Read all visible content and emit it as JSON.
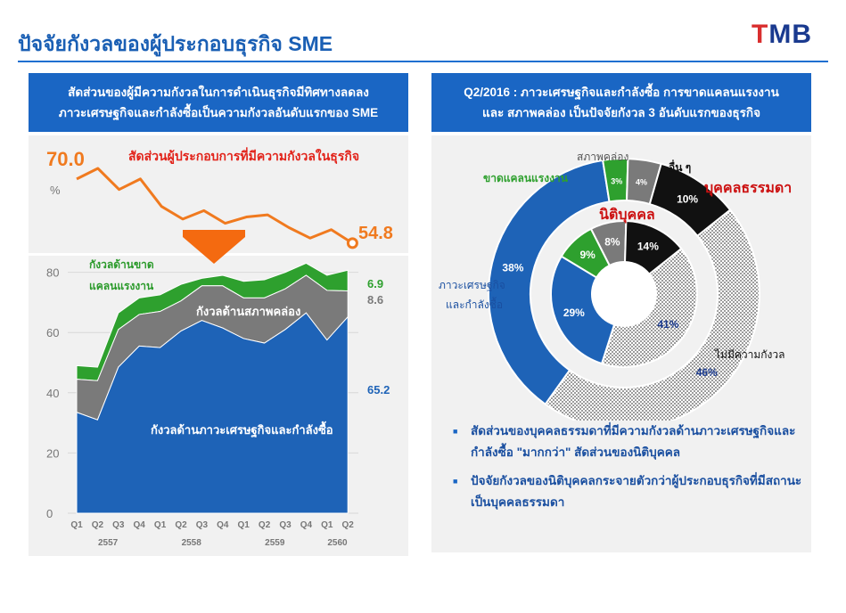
{
  "page": {
    "title": "ปัจจัยกังวลของผู้ประกอบธุรกิจ SME",
    "logo_prefix": "T",
    "logo_rest": "MB"
  },
  "left_panel": {
    "banner_line1": "สัดส่วนของผู้มีความกังวลในการดำเนินธุรกิจมีทิศทางลดลง",
    "banner_line2": "ภาวะเศรษฐกิจและกำลังซื้อเป็นความกังวลอันดับแรกของ SME",
    "top_chart_label": "สัดส่วนผู้ประกอบการที่มีความกังวลในธุรกิจ",
    "pct_symbol": "%",
    "start_label": "70.0",
    "end_label": "54.8"
  },
  "right_panel": {
    "banner_line1": "Q2/2016 : ภาวะเศรษฐกิจและกำลังซื้อ การขาดแคลนแรงงาน",
    "banner_line2": "และ สภาพคล่อง เป็นปัจจัยกังวล 3 อันดับแรกของธุรกิจ",
    "label_liquidity": "สภาพคล่อง",
    "label_labor": "ขาดแคลนแรงงาน",
    "label_other": "อื่น ๆ",
    "label_individual": "บุคคลธรรมดา",
    "label_juristic": "นิติบุคคล",
    "label_econ_1": "ภาวะเศรษฐกิจ",
    "label_econ_2": "และกำลังซื้อ",
    "label_no_worry": "ไม่มีความกังวล"
  },
  "bullets": [
    "สัดส่วนของบุคคลธรรมดาที่มีความกังวลด้านภาวะเศรษฐกิจและกำลังซื้อ \"มากกว่า\" สัดส่วนของนิติบุคคล",
    "ปัจจัยกังวลของนิติบุคคลกระจายตัวกว่าผู้ประกอบธุรกิจที่มีสถานะเป็นบุคคลธรรมดา"
  ],
  "colors": {
    "brand_blue": "#1a66c4",
    "orange": "#f07a1f",
    "green": "#2ea02e",
    "grey": "#7a7a7a",
    "dark_blue": "#1e63b7",
    "black": "#111111",
    "red": "#cc1111"
  },
  "chart_data": [
    {
      "type": "line",
      "title": "สัดส่วนผู้ประกอบการที่มีความกังวลในธุรกิจ",
      "ylabel": "%",
      "x": [
        "Q1",
        "Q2",
        "Q3",
        "Q4",
        "Q1",
        "Q2",
        "Q3",
        "Q4",
        "Q1",
        "Q2",
        "Q3",
        "Q4",
        "Q1",
        "Q2"
      ],
      "values": [
        70.0,
        72.5,
        67.5,
        70.0,
        63.5,
        60.5,
        62.5,
        59.5,
        61.0,
        61.5,
        58.5,
        56.0,
        58.0,
        54.8
      ],
      "annotations": [
        "70.0",
        "54.8"
      ]
    },
    {
      "type": "area",
      "categories": [
        "Q1",
        "Q2",
        "Q3",
        "Q4",
        "Q1",
        "Q2",
        "Q3",
        "Q4",
        "Q1",
        "Q2",
        "Q3",
        "Q4",
        "Q1",
        "Q2"
      ],
      "years": [
        {
          "label": "2557",
          "span": [
            0,
            3
          ]
        },
        {
          "label": "2558",
          "span": [
            4,
            7
          ]
        },
        {
          "label": "2559",
          "span": [
            8,
            11
          ]
        },
        {
          "label": "2560",
          "span": [
            12,
            13
          ]
        }
      ],
      "ylim": [
        0,
        80
      ],
      "yticks": [
        0,
        20,
        40,
        60,
        80
      ],
      "stacked": true,
      "series": [
        {
          "name": "กังวลด้านภาวะเศรษฐกิจและกำลังซื้อ",
          "color": "#1e63b7",
          "values": [
            33.5,
            31.0,
            48.5,
            55.5,
            55.0,
            60.5,
            64.0,
            61.5,
            58.0,
            56.5,
            61.0,
            66.5,
            57.5,
            65.2
          ]
        },
        {
          "name": "กังวลด้านสภาพคล่อง",
          "color": "#7a7a7a",
          "values": [
            11.0,
            13.0,
            12.5,
            10.5,
            12.0,
            10.0,
            11.5,
            14.0,
            13.5,
            15.0,
            13.5,
            12.5,
            16.5,
            8.6
          ]
        },
        {
          "name": "กังวลด้านขาดแคลนแรงงาน",
          "color": "#2ea02e",
          "values": [
            4.5,
            4.5,
            5.5,
            5.5,
            5.5,
            5.5,
            2.5,
            3.5,
            5.5,
            6.0,
            5.5,
            4.0,
            5.0,
            6.9
          ]
        }
      ],
      "end_labels": [
        "6.9",
        "8.6",
        "65.2"
      ]
    },
    {
      "type": "pie",
      "variant": "double-donut",
      "rings": [
        {
          "name": "บุคคลธรรมดา",
          "position": "outer",
          "slices": [
            {
              "label": "ภาวะเศรษฐกิจและกำลังซื้อ",
              "value": 38,
              "text": "38%",
              "color": "#1e63b7"
            },
            {
              "label": "ขาดแคลนแรงงาน",
              "value": 3,
              "text": "3%",
              "color": "#2ea02e"
            },
            {
              "label": "สภาพคล่อง",
              "value": 4,
              "text": "4%",
              "color": "#7a7a7a"
            },
            {
              "label": "อื่น ๆ",
              "value": 10,
              "text": "10%",
              "color": "#111111"
            },
            {
              "label": "ไม่มีความกังวล",
              "value": 46,
              "text": "46%",
              "color": "dotted"
            }
          ]
        },
        {
          "name": "นิติบุคคล",
          "position": "inner",
          "slices": [
            {
              "label": "ภาวะเศรษฐกิจและกำลังซื้อ",
              "value": 29,
              "text": "29%",
              "color": "#1e63b7"
            },
            {
              "label": "ขาดแคลนแรงงาน",
              "value": 9,
              "text": "9%",
              "color": "#2ea02e"
            },
            {
              "label": "สภาพคล่อง",
              "value": 8,
              "text": "8%",
              "color": "#7a7a7a"
            },
            {
              "label": "อื่น ๆ",
              "value": 14,
              "text": "14%",
              "color": "#111111"
            },
            {
              "label": "ไม่มีความกังวล",
              "value": 41,
              "text": "41%",
              "color": "dotted"
            }
          ]
        }
      ]
    }
  ]
}
